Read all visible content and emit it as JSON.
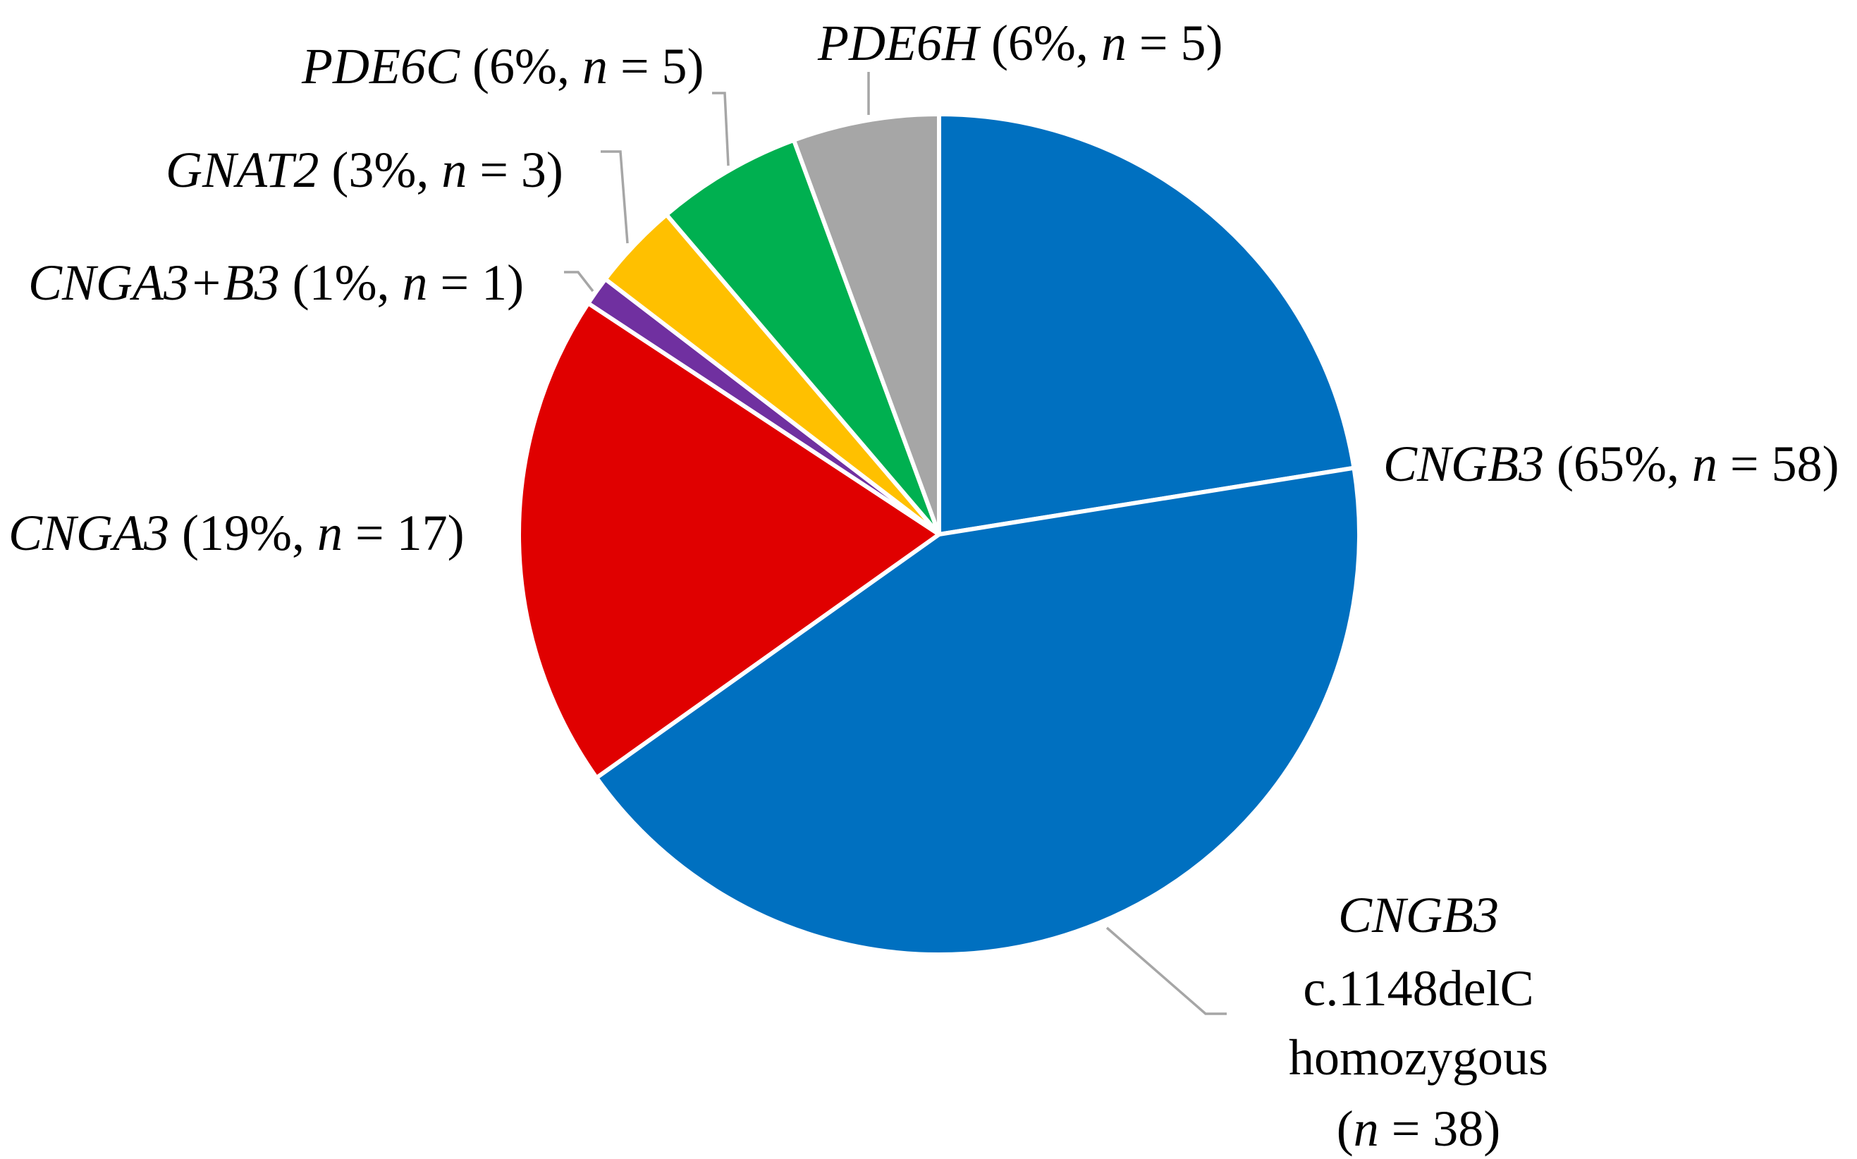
{
  "chart_data": {
    "type": "pie",
    "title": "",
    "slices": [
      {
        "key": "cngb3_other",
        "gene": "CNGB3",
        "detail": "(65%, ",
        "n_prefix": "n",
        "n_suffix": " = 58)",
        "value": 20,
        "color": "#0070c0"
      },
      {
        "key": "cngb3_homo",
        "gene": "CNGB3",
        "line2": "c.1148delC",
        "line3": "homozygous",
        "line4_open": "(",
        "n_prefix": "n",
        "n_suffix": " = 38)",
        "value": 38,
        "color": "#0070c0"
      },
      {
        "key": "cnga3",
        "gene": "CNGA3",
        "detail": "(19%, ",
        "n_prefix": "n",
        "n_suffix": " = 17)",
        "value": 17,
        "color": "#e00000"
      },
      {
        "key": "cnga3b3",
        "gene": "CNGA3+B3",
        "detail": "(1%, ",
        "n_prefix": "n",
        "n_suffix": " = 1)",
        "value": 1,
        "color": "#7030a0"
      },
      {
        "key": "gnat2",
        "gene": "GNAT2",
        "detail": "(3%, ",
        "n_prefix": "n",
        "n_suffix": " = 3)",
        "value": 3,
        "color": "#ffc000"
      },
      {
        "key": "pde6c",
        "gene": "PDE6C",
        "detail": "(6%, ",
        "n_prefix": "n",
        "n_suffix": " = 5)",
        "value": 5,
        "color": "#00b050"
      },
      {
        "key": "pde6h",
        "gene": "PDE6H",
        "detail": "(6%, ",
        "n_prefix": "n",
        "n_suffix": " = 5)",
        "value": 5,
        "color": "#a6a6a6"
      }
    ],
    "start_angle": "12 o'clock",
    "direction": "clockwise",
    "legend": "none (direct labels)"
  }
}
